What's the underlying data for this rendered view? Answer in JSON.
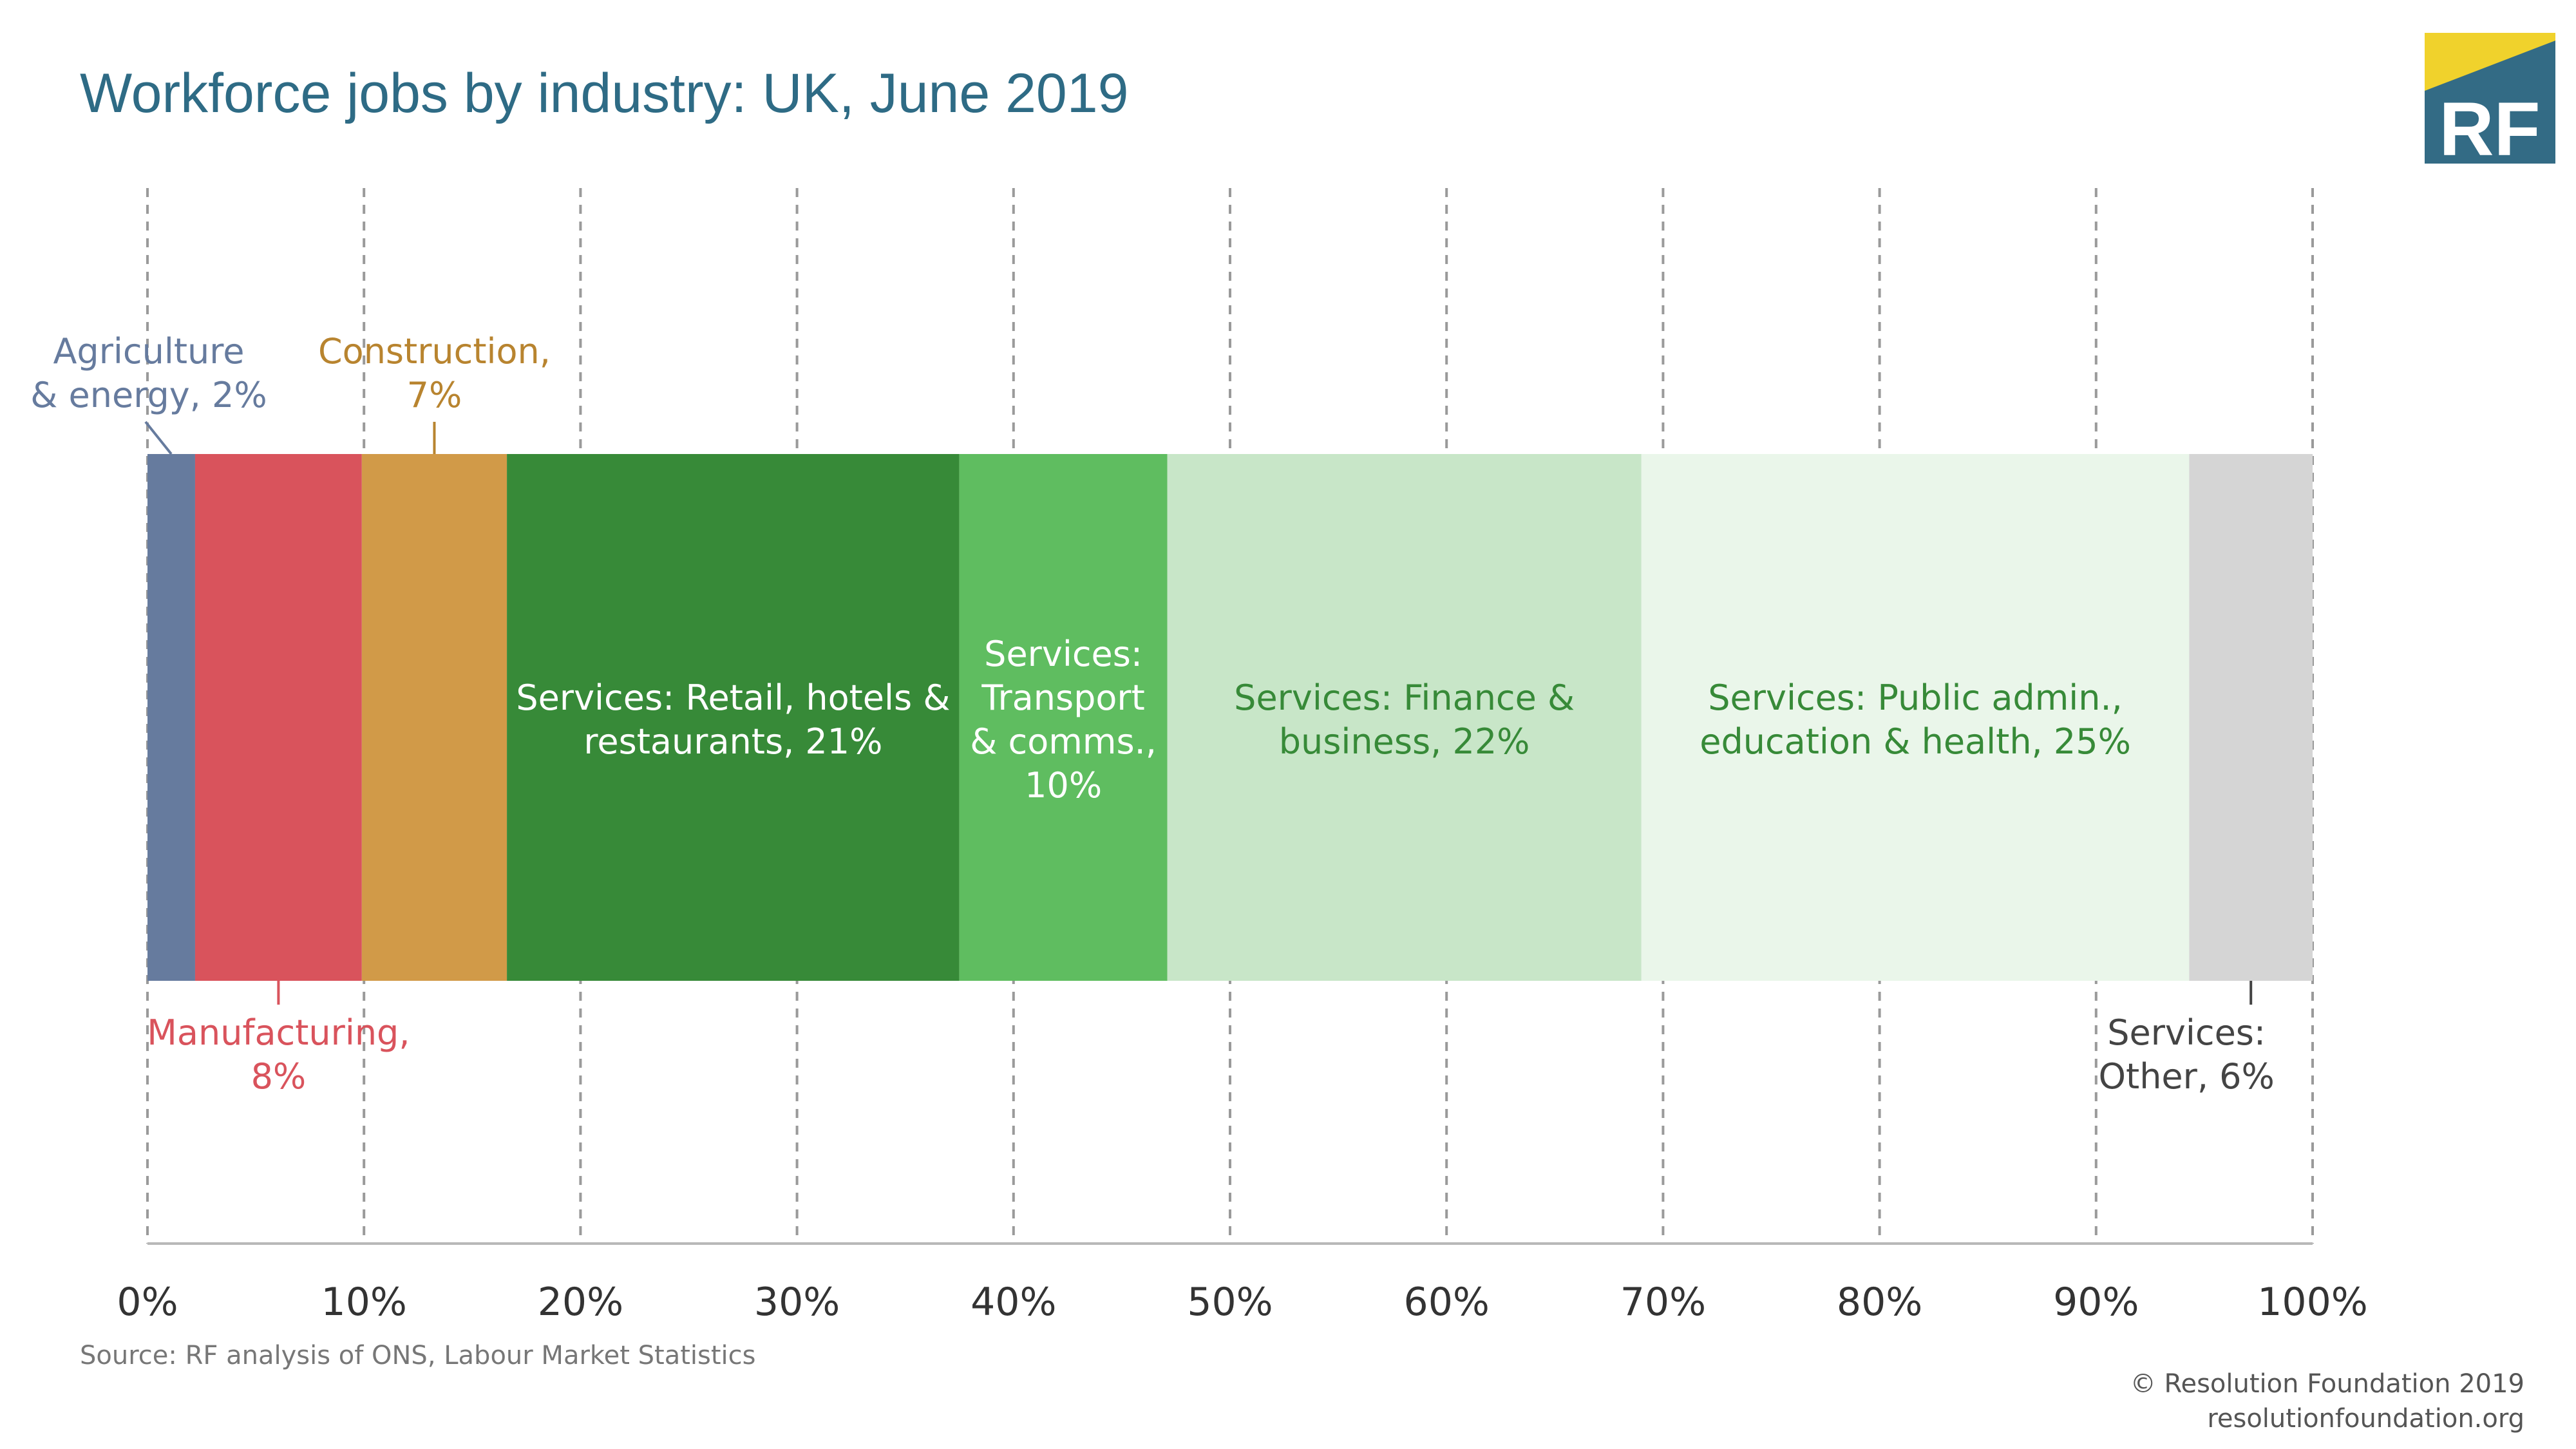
{
  "header": {
    "title": "Workforce jobs by industry: UK, June 2019",
    "logo_text": "RF"
  },
  "footer": {
    "source": "Source: RF analysis of ONS, Labour Market Statistics",
    "copyright": "© Resolution Foundation 2019",
    "website": "resolutionfoundation.org"
  },
  "colors": {
    "title": "#2e6b85",
    "logo_bg": "#336b85",
    "logo_accent": "#f0d22c",
    "agriculture": "#667b9e",
    "manufacturing": "#d9535c",
    "construction": "#d19a48",
    "retail": "#378a38",
    "transport": "#5fbd60",
    "finance": "#c8e6c8",
    "public": "#eaf6ea",
    "other": "#d5d5d5"
  },
  "chart_data": {
    "type": "bar",
    "orientation": "horizontal",
    "stacked": true,
    "title": "Workforce jobs by industry: UK, June 2019",
    "xlim": [
      0,
      100
    ],
    "xticks": [
      "0%",
      "10%",
      "20%",
      "30%",
      "40%",
      "50%",
      "60%",
      "70%",
      "80%",
      "90%",
      "100%"
    ],
    "grid": true,
    "series": [
      {
        "name": "Agriculture & energy",
        "value": 2.2,
        "label": [
          "Agriculture",
          "& energy, 2%"
        ],
        "color": "#667b9e",
        "label_color": "#667b9e",
        "label_position": "above"
      },
      {
        "name": "Manufacturing",
        "value": 7.7,
        "label": [
          "Manufacturing,",
          "8%"
        ],
        "color": "#d9535c",
        "label_color": "#d9535c",
        "label_position": "below"
      },
      {
        "name": "Construction",
        "value": 6.7,
        "label": [
          "Construction,",
          "7%"
        ],
        "color": "#d19a48",
        "label_color": "#b8842f",
        "label_position": "above"
      },
      {
        "name": "Services: Retail, hotels & restaurants",
        "value": 20.9,
        "label": [
          "Services: Retail, hotels &",
          "restaurants, 21%"
        ],
        "color": "#378a38",
        "label_color": "#ffffff",
        "label_position": "inside"
      },
      {
        "name": "Services: Transport & comms.",
        "value": 9.6,
        "label": [
          "Services:",
          "Transport",
          "& comms.,",
          "10%"
        ],
        "color": "#5fbd60",
        "label_color": "#ffffff",
        "label_position": "inside"
      },
      {
        "name": "Services: Finance & business",
        "value": 21.9,
        "label": [
          "Services: Finance &",
          "business, 22%"
        ],
        "color": "#c8e6c8",
        "label_color": "#378a38",
        "label_position": "inside"
      },
      {
        "name": "Services: Public admin., education & health",
        "value": 25.3,
        "label": [
          "Services: Public admin.,",
          "education & health, 25%"
        ],
        "color": "#eaf6ea",
        "label_color": "#378a38",
        "label_position": "inside"
      },
      {
        "name": "Services: Other",
        "value": 5.7,
        "label": [
          "Services:",
          "Other, 6%"
        ],
        "color": "#d5d5d5",
        "label_color": "#444444",
        "label_position": "below"
      }
    ]
  }
}
